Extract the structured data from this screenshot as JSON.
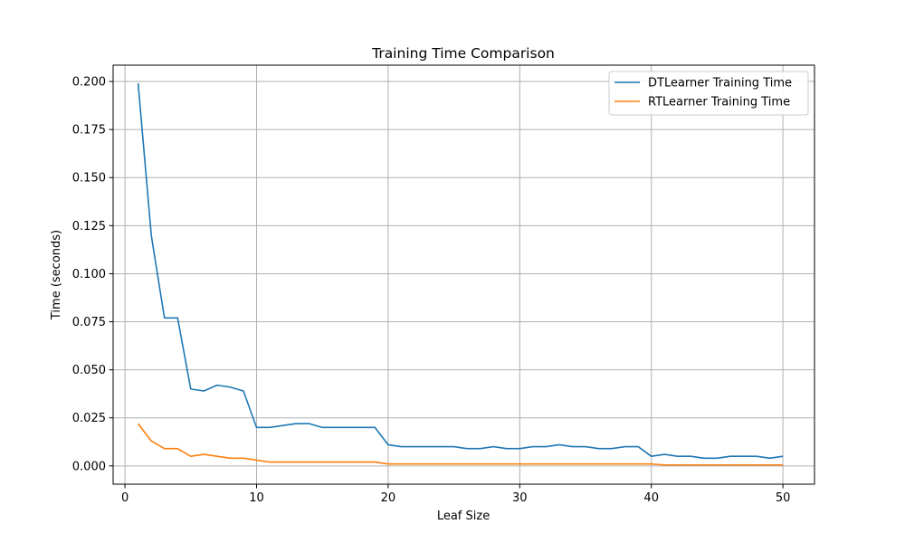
{
  "chart_data": {
    "type": "line",
    "title": "Training Time Comparison",
    "xlabel": "Leaf Size",
    "ylabel": "Time (seconds)",
    "xlim": [
      -0.9,
      52.4
    ],
    "ylim": [
      -0.0095,
      0.2085
    ],
    "xticks": [
      0,
      10,
      20,
      30,
      40,
      50
    ],
    "xtick_labels": [
      "0",
      "10",
      "20",
      "30",
      "40",
      "50"
    ],
    "yticks": [
      0.0,
      0.025,
      0.05,
      0.075,
      0.1,
      0.125,
      0.15,
      0.175,
      0.2
    ],
    "ytick_labels": [
      "0.000",
      "0.025",
      "0.050",
      "0.075",
      "0.100",
      "0.125",
      "0.150",
      "0.175",
      "0.200"
    ],
    "grid": true,
    "legend_position": "top-right",
    "x": [
      1,
      2,
      3,
      4,
      5,
      6,
      7,
      8,
      9,
      10,
      11,
      12,
      13,
      14,
      15,
      16,
      17,
      18,
      19,
      20,
      21,
      22,
      23,
      24,
      25,
      26,
      27,
      28,
      29,
      30,
      31,
      32,
      33,
      34,
      35,
      36,
      37,
      38,
      39,
      40,
      41,
      42,
      43,
      44,
      45,
      46,
      47,
      48,
      49,
      50
    ],
    "series": [
      {
        "name": "DTLearner Training Time",
        "color": "#1f77b4",
        "values": [
          0.199,
          0.12,
          0.077,
          0.077,
          0.04,
          0.039,
          0.042,
          0.041,
          0.039,
          0.02,
          0.02,
          0.021,
          0.022,
          0.022,
          0.02,
          0.02,
          0.02,
          0.02,
          0.02,
          0.011,
          0.01,
          0.01,
          0.01,
          0.01,
          0.01,
          0.009,
          0.009,
          0.01,
          0.009,
          0.009,
          0.01,
          0.01,
          0.011,
          0.01,
          0.01,
          0.009,
          0.009,
          0.01,
          0.01,
          0.005,
          0.006,
          0.005,
          0.005,
          0.004,
          0.004,
          0.005,
          0.005,
          0.005,
          0.004,
          0.005
        ]
      },
      {
        "name": "RTLearner Training Time",
        "color": "#ff7f0e",
        "values": [
          0.022,
          0.013,
          0.009,
          0.009,
          0.005,
          0.006,
          0.005,
          0.004,
          0.004,
          0.003,
          0.002,
          0.002,
          0.002,
          0.002,
          0.002,
          0.002,
          0.002,
          0.002,
          0.002,
          0.001,
          0.001,
          0.001,
          0.001,
          0.001,
          0.001,
          0.001,
          0.001,
          0.001,
          0.001,
          0.001,
          0.001,
          0.001,
          0.001,
          0.001,
          0.001,
          0.001,
          0.001,
          0.001,
          0.001,
          0.001,
          0.0005,
          0.0005,
          0.0005,
          0.0005,
          0.0005,
          0.0005,
          0.0005,
          0.0005,
          0.0005,
          0.0005
        ]
      }
    ]
  }
}
